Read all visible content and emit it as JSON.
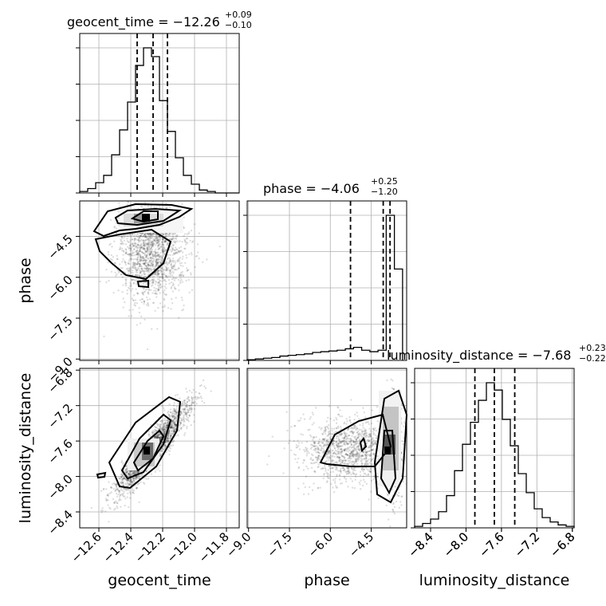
{
  "chart_data": {
    "type": "corner",
    "parameters": [
      "geocent_time",
      "phase",
      "luminosity_distance"
    ],
    "axis_labels": {
      "x": [
        "geocent_time",
        "phase",
        "luminosity_distance"
      ],
      "y": [
        "phase",
        "luminosity_distance"
      ]
    },
    "ranges": {
      "geocent_time": [
        -12.72,
        -11.72
      ],
      "phase": [
        -9.05,
        -3.2
      ],
      "luminosity_distance": [
        -8.58,
        -6.78
      ]
    },
    "ticks": {
      "geocent_time": [
        "−12.6",
        "−12.4",
        "−12.2",
        "−12.0",
        "−11.8"
      ],
      "phase": [
        "−9.0",
        "−7.5",
        "−6.0",
        "−4.5"
      ],
      "luminosity_distance": [
        "−8.4",
        "−8.0",
        "−7.6",
        "−7.2",
        "−6.8"
      ]
    },
    "tick_values": {
      "geocent_time": [
        -12.6,
        -12.4,
        -12.2,
        -12.0,
        -11.8
      ],
      "phase": [
        -9.0,
        -7.5,
        -6.0,
        -4.5
      ],
      "luminosity_distance": [
        -8.4,
        -8.0,
        -7.6,
        -7.2,
        -6.8
      ]
    },
    "summaries": [
      {
        "param": "geocent_time",
        "label": "geocent_time = −12.26",
        "median": -12.26,
        "plus": "+0.09",
        "minus": "−0.10",
        "quantiles": [
          -12.36,
          -12.26,
          -12.17
        ]
      },
      {
        "param": "phase",
        "label": "phase = −4.06",
        "median": -4.06,
        "plus": "+0.25",
        "minus": "−1.20",
        "quantiles": [
          -5.26,
          -4.06,
          -3.81
        ]
      },
      {
        "param": "luminosity_distance",
        "label": "luminosity_distance = −7.68",
        "median": -7.68,
        "plus": "+0.23",
        "minus": "−0.22",
        "quantiles": [
          -7.9,
          -7.68,
          -7.45
        ]
      }
    ],
    "histograms": {
      "geocent_time": {
        "bins": [
          -12.72,
          -12.67,
          -12.62,
          -12.57,
          -12.52,
          -12.47,
          -12.42,
          -12.37,
          -12.32,
          -12.27,
          -12.22,
          -12.17,
          -12.12,
          -12.07,
          -12.02,
          -11.97,
          -11.92,
          -11.87,
          -11.82,
          -11.77,
          -11.72
        ],
        "counts": [
          0.01,
          0.03,
          0.07,
          0.12,
          0.26,
          0.43,
          0.62,
          0.87,
          0.99,
          0.93,
          0.63,
          0.42,
          0.24,
          0.12,
          0.06,
          0.02,
          0.01,
          0,
          0,
          0
        ]
      },
      "phase": {
        "bins": [
          -9.05,
          -8.75,
          -8.45,
          -8.15,
          -7.85,
          -7.55,
          -7.25,
          -6.95,
          -6.65,
          -6.35,
          -6.05,
          -5.75,
          -5.45,
          -5.15,
          -4.85,
          -4.55,
          -4.25,
          -3.95,
          -3.65,
          -3.35
        ],
        "counts": [
          0.005,
          0.01,
          0.015,
          0.02,
          0.03,
          0.035,
          0.04,
          0.045,
          0.055,
          0.06,
          0.065,
          0.07,
          0.08,
          0.09,
          0.07,
          0.06,
          0.07,
          1.0,
          0.63
        ]
      },
      "luminosity_distance": {
        "bins": [
          -8.58,
          -8.49,
          -8.4,
          -8.31,
          -8.22,
          -8.13,
          -8.04,
          -7.95,
          -7.86,
          -7.77,
          -7.68,
          -7.59,
          -7.5,
          -7.41,
          -7.32,
          -7.23,
          -7.14,
          -7.05,
          -6.96,
          -6.87,
          -6.78
        ],
        "counts": [
          0.01,
          0.03,
          0.06,
          0.11,
          0.22,
          0.39,
          0.57,
          0.72,
          0.87,
          0.99,
          0.94,
          0.74,
          0.56,
          0.37,
          0.24,
          0.13,
          0.07,
          0.04,
          0.02,
          0.01
        ]
      }
    },
    "contours_2d": [
      {
        "x": "geocent_time",
        "y": "phase",
        "peak": [
          -12.3,
          -4.2
        ]
      },
      {
        "x": "geocent_time",
        "y": "luminosity_distance",
        "peak": [
          -12.27,
          -7.7
        ]
      },
      {
        "x": "phase",
        "y": "luminosity_distance",
        "peak": [
          -3.75,
          -7.7
        ]
      }
    ],
    "grid": true
  }
}
